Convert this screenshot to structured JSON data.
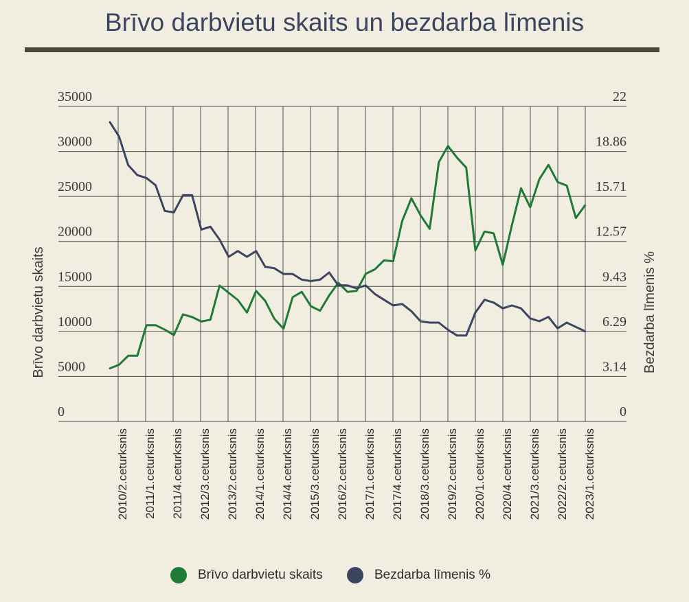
{
  "page": {
    "title": "Brīvo darbvietu skaits un bezdarba līmenis"
  },
  "chart_data": {
    "type": "line",
    "title": "Brīvo darbvietu skaits un bezdarba līmenis",
    "y_left": {
      "label": "Brīvo darbvietu skaits",
      "min": 0,
      "max": 35000,
      "ticks": [
        "0",
        "5000",
        "10000",
        "15000",
        "20000",
        "25000",
        "30000",
        "35000"
      ]
    },
    "y_right": {
      "label": "Bezdarba līmenis %",
      "min": 0,
      "max": 22,
      "ticks": [
        "0",
        "3.14",
        "6.29",
        "9.43",
        "12.57",
        "15.71",
        "18.86",
        "22"
      ]
    },
    "x_labels": [
      "2010/2.ceturksnis",
      "2011/1.ceturksnis",
      "2011/4.ceturksnis",
      "2012/3.ceturksnis",
      "2013/2.ceturksnis",
      "2014/1.ceturksnis",
      "2014/4.ceturksnis",
      "2015/3.ceturksnis",
      "2016/2.ceturksnis",
      "2017/1.ceturksnis",
      "2017/4.ceturksnis",
      "2018/3.ceturksnis",
      "2019/2.ceturksnis",
      "2020/1.ceturksnis",
      "2020/4.ceturksnis",
      "2021/3.ceturksnis",
      "2022/2.ceturksnis",
      "2023/1.ceturksnis"
    ],
    "grid": true,
    "legend_position": "bottom",
    "series": [
      {
        "name": "Brīvo darbvietu skaits",
        "axis": "left",
        "color": "#1e7a35",
        "values": [
          5900,
          6300,
          7300,
          7300,
          10700,
          10700,
          10200,
          9600,
          11900,
          11600,
          11100,
          11300,
          15100,
          14300,
          13500,
          12100,
          14500,
          13400,
          11400,
          10300,
          13800,
          14400,
          12800,
          12300,
          14000,
          15400,
          14400,
          14500,
          16400,
          16900,
          17900,
          17800,
          22300,
          24800,
          22900,
          21400,
          28800,
          30600,
          29300,
          28200,
          19000,
          21100,
          20900,
          17400,
          21800,
          25900,
          23800,
          26900,
          28500,
          26600,
          26200,
          22600,
          24000
        ]
      },
      {
        "name": "Bezdarba līmenis %",
        "axis": "right",
        "color": "#3b4560",
        "values": [
          20.9,
          19.9,
          17.9,
          17.2,
          17.0,
          16.5,
          14.7,
          14.6,
          15.8,
          15.8,
          13.4,
          13.6,
          12.7,
          11.5,
          11.9,
          11.5,
          11.9,
          10.8,
          10.7,
          10.3,
          10.3,
          9.9,
          9.8,
          9.9,
          10.4,
          9.5,
          9.5,
          9.3,
          9.5,
          8.9,
          8.5,
          8.1,
          8.2,
          7.7,
          7.0,
          6.9,
          6.9,
          6.4,
          6.0,
          6.0,
          7.6,
          8.5,
          8.3,
          7.9,
          8.1,
          7.9,
          7.2,
          7.0,
          7.3,
          6.5,
          6.9,
          6.6,
          6.3
        ]
      }
    ]
  },
  "legend": [
    {
      "label": "Brīvo darbvietu skaits",
      "color": "#1e7a35"
    },
    {
      "label": "Bezdarba līmenis %",
      "color": "#3b4560"
    }
  ]
}
